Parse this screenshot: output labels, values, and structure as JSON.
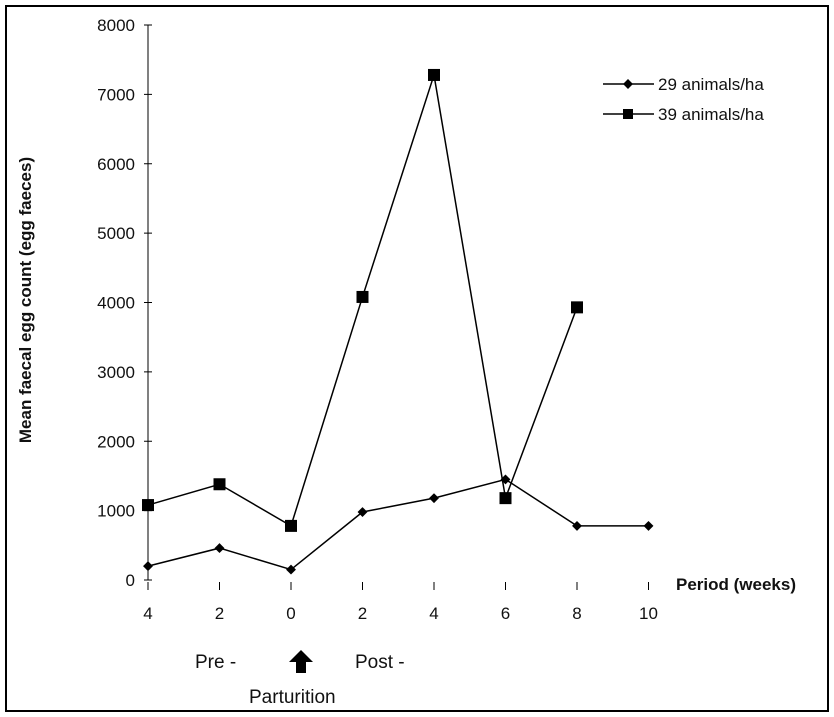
{
  "chart_data": {
    "type": "line",
    "title": "",
    "xlabel": "Period (weeks)",
    "ylabel": "Mean faecal egg count (egg faeces)",
    "ylim": [
      0,
      8000
    ],
    "yticks": [
      0,
      1000,
      2000,
      3000,
      4000,
      5000,
      6000,
      7000,
      8000
    ],
    "categories": [
      "4",
      "2",
      "0",
      "2",
      "4",
      "6",
      "8",
      "10"
    ],
    "grid": false,
    "legend_position": "top-right",
    "series": [
      {
        "name": "29 animals/ha",
        "marker": "diamond",
        "values": [
          200,
          460,
          150,
          980,
          1180,
          1450,
          780,
          780
        ]
      },
      {
        "name": "39 animals/ha",
        "marker": "square",
        "values": [
          1080,
          1380,
          780,
          4080,
          7280,
          1180,
          3930,
          null
        ]
      }
    ],
    "annotations": {
      "pre": "Pre -",
      "post": "Post -",
      "event": "Parturition",
      "arrow": "up-arrow-icon"
    }
  },
  "colors": {
    "line": "#000000",
    "border": "#000000",
    "background": "#ffffff"
  }
}
